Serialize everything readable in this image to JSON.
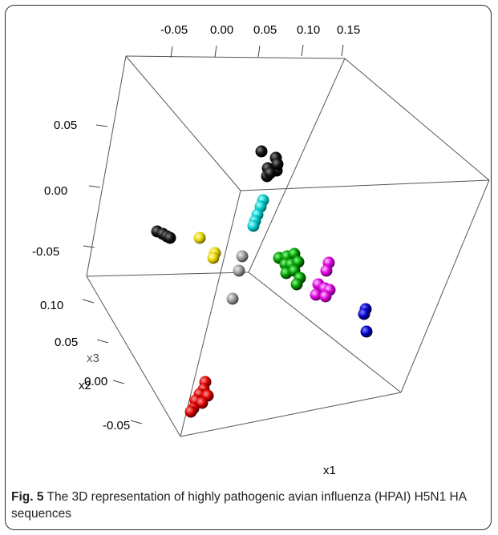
{
  "figure": {
    "label": "Fig. 5",
    "caption": "The 3D representation of highly pathogenic avian influenza (HPAI) H5N1 HA sequences"
  },
  "chart_data": {
    "type": "scatter3d",
    "axes": {
      "x": {
        "label": "x1",
        "ticks": [
          "-0.05",
          "0.00",
          "0.05",
          "0.10",
          "0.15"
        ]
      },
      "y": {
        "label": "x2",
        "ticks": [
          "0.10",
          "0.05",
          "0.00",
          "-0.05"
        ]
      },
      "z": {
        "label": "x3",
        "ticks": [
          "0.05",
          "0.00",
          "-0.05"
        ]
      }
    },
    "clusters": [
      {
        "color": "#000000",
        "count": 7
      },
      {
        "color": "#000000",
        "count": 4
      },
      {
        "color": "#00cccc",
        "count": 5
      },
      {
        "color": "#e6d600",
        "count": 3
      },
      {
        "color": "#999999",
        "count": 3
      },
      {
        "color": "#009900",
        "count": 10
      },
      {
        "color": "#dd00dd",
        "count": 7
      },
      {
        "color": "#0000cc",
        "count": 3
      },
      {
        "color": "#dd0000",
        "count": 8
      }
    ]
  }
}
